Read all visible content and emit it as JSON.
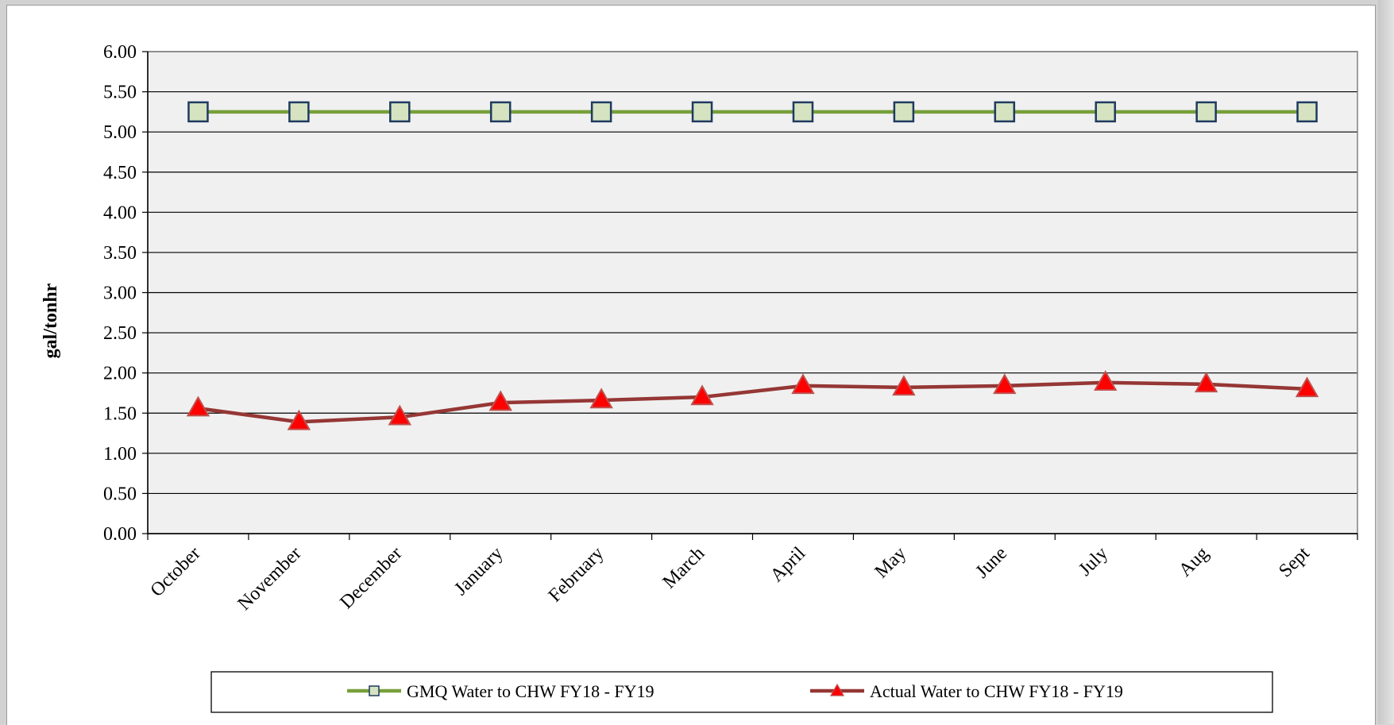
{
  "chart_data": {
    "type": "line",
    "title": "",
    "xlabel": "",
    "ylabel": "gal/tonhr",
    "ylim": [
      0,
      6
    ],
    "yticks": [
      "0.00",
      "0.50",
      "1.00",
      "1.50",
      "2.00",
      "2.50",
      "3.00",
      "3.50",
      "4.00",
      "4.50",
      "5.00",
      "5.50",
      "6.00"
    ],
    "categories": [
      "October",
      "November",
      "December",
      "January",
      "February",
      "March",
      "April",
      "May",
      "June",
      "July",
      "Aug",
      "Sept"
    ],
    "grid": true,
    "legend_position": "bottom",
    "plot_background": "#f0f0f0",
    "series": [
      {
        "name": "GMQ Water to CHW FY18 - FY19",
        "values": [
          5.25,
          5.25,
          5.25,
          5.25,
          5.25,
          5.25,
          5.25,
          5.25,
          5.25,
          5.25,
          5.25,
          5.25
        ],
        "line_color": "#77a03a",
        "marker": "square",
        "marker_fill": "#d5e3c0",
        "marker_stroke": "#1f3a60"
      },
      {
        "name": "Actual Water to CHW FY18 - FY19",
        "values": [
          1.56,
          1.39,
          1.45,
          1.63,
          1.66,
          1.7,
          1.84,
          1.82,
          1.84,
          1.88,
          1.86,
          1.8
        ],
        "line_color": "#953735",
        "marker": "triangle",
        "marker_fill": "#ff0000",
        "marker_stroke": "#c0504d"
      }
    ]
  }
}
